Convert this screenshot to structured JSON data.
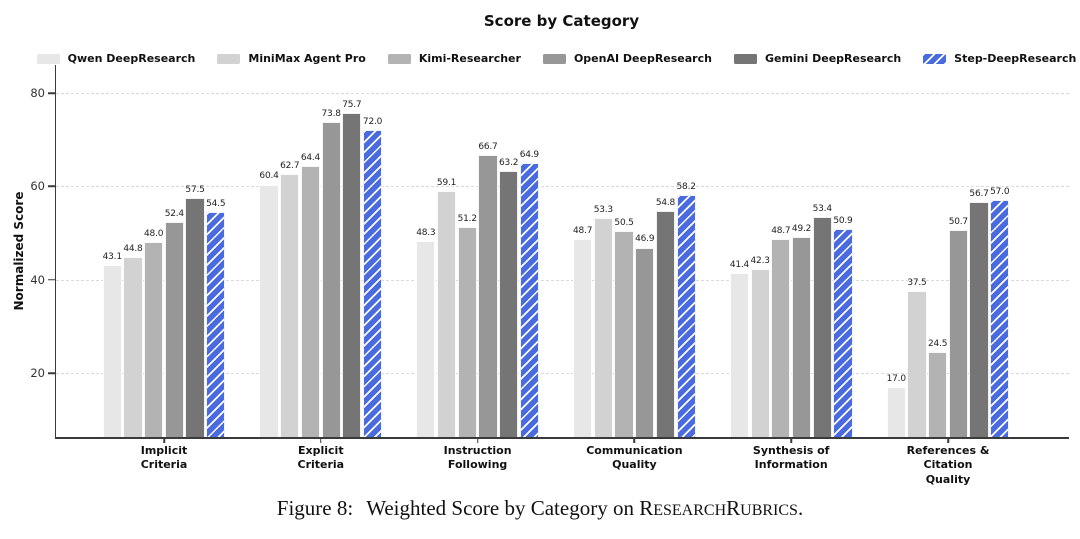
{
  "chart_data": {
    "type": "bar",
    "title": "Score by Category",
    "ylabel": "Normalized Score",
    "yticks": [
      20,
      40,
      60,
      80
    ],
    "ylim": [
      6.3,
      86
    ],
    "grid": "horizontal-dashed",
    "legend_position": "top",
    "categories": [
      [
        "Implicit",
        "Criteria"
      ],
      [
        "Explicit",
        "Criteria"
      ],
      [
        "Instruction",
        "Following"
      ],
      [
        "Communication",
        "Quality"
      ],
      [
        "Synthesis of",
        "Information"
      ],
      [
        "References &",
        "Citation",
        "Quality"
      ]
    ],
    "series": [
      {
        "name": "Qwen DeepResearch",
        "color": "#e7e7e7",
        "values": [
          43.1,
          60.4,
          48.3,
          48.7,
          41.4,
          17.0
        ]
      },
      {
        "name": "MiniMax Agent Pro",
        "color": "#d2d2d2",
        "values": [
          44.8,
          62.7,
          59.1,
          53.3,
          42.3,
          37.5
        ]
      },
      {
        "name": "Kimi-Researcher",
        "color": "#b3b3b3",
        "values": [
          48.0,
          64.4,
          51.2,
          50.5,
          48.7,
          24.5
        ]
      },
      {
        "name": "OpenAI DeepResearch",
        "color": "#979797",
        "values": [
          52.4,
          73.8,
          66.7,
          46.9,
          49.2,
          50.7
        ]
      },
      {
        "name": "Gemini DeepResearch",
        "color": "#757575",
        "values": [
          57.5,
          75.7,
          63.2,
          54.8,
          53.4,
          56.7
        ]
      },
      {
        "name": "Step-DeepResearch",
        "color": "#4a6be0",
        "hatch": "/",
        "hatch_color": "#ffffff",
        "values": [
          54.5,
          72.0,
          64.9,
          58.2,
          50.9,
          57.0
        ]
      }
    ]
  },
  "caption": {
    "label": "Figure 8:",
    "body": "Weighted Score by Category on",
    "smallcaps": [
      {
        "cap": "R",
        "rest": "ESEARCH"
      },
      {
        "cap": "R",
        "rest": "UBRICS"
      }
    ],
    "suffix": "."
  }
}
